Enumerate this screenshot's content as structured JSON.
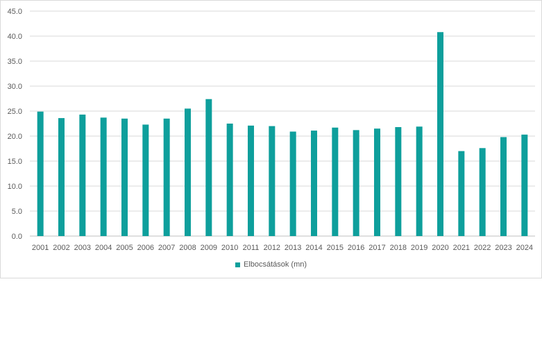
{
  "chart_data": {
    "type": "bar",
    "categories": [
      "2001",
      "2002",
      "2003",
      "2004",
      "2005",
      "2006",
      "2007",
      "2008",
      "2009",
      "2010",
      "2011",
      "2012",
      "2013",
      "2014",
      "2015",
      "2016",
      "2017",
      "2018",
      "2019",
      "2020",
      "2021",
      "2022",
      "2023",
      "2024"
    ],
    "series": [
      {
        "name": "Elbocsátások (mn)",
        "color": "#0e9f9c",
        "values": [
          24.9,
          23.6,
          24.3,
          23.7,
          23.5,
          22.3,
          23.5,
          25.5,
          27.4,
          22.5,
          22.1,
          22.0,
          20.9,
          21.1,
          21.7,
          21.2,
          21.5,
          21.8,
          21.9,
          40.8,
          17.0,
          17.6,
          19.8,
          20.3
        ]
      }
    ],
    "yticks": [
      "0.0",
      "5.0",
      "10.0",
      "15.0",
      "20.0",
      "25.0",
      "30.0",
      "35.0",
      "40.0",
      "45.0"
    ],
    "ylim": [
      0,
      45
    ],
    "grid": true,
    "legend_position": "bottom",
    "title": "",
    "xlabel": "",
    "ylabel": ""
  }
}
